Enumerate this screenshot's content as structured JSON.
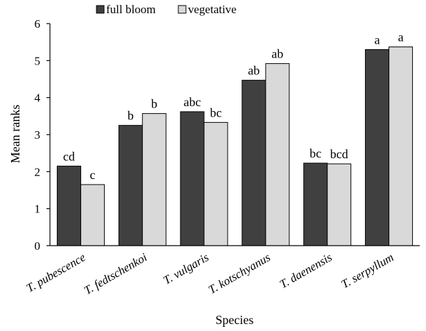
{
  "chart_data": {
    "type": "bar",
    "categories": [
      "T. pubescence",
      "T. fedtschenkoi",
      "T. vulgaris",
      "T. kotschyanus",
      "T. daenensis",
      "T. serpyllum"
    ],
    "series": [
      {
        "name": "full bloom",
        "color": "#404040",
        "values": [
          2.15,
          3.25,
          3.62,
          4.47,
          2.23,
          5.3
        ],
        "labels": [
          "cd",
          "b",
          "abc",
          "ab",
          "bc",
          "a"
        ]
      },
      {
        "name": "vegetative",
        "color": "#d9d9d9",
        "values": [
          1.65,
          3.57,
          3.33,
          4.92,
          2.21,
          5.37
        ],
        "labels": [
          "c",
          "b",
          "bc",
          "ab",
          "bcd",
          "a"
        ]
      }
    ],
    "title": "",
    "xlabel": "Species",
    "ylabel": "Mean ranks",
    "ylim": [
      0,
      6
    ],
    "yticks": [
      "0",
      "1",
      "2",
      "3",
      "4",
      "5",
      "6"
    ],
    "grid": false,
    "legend_position": "top-left"
  }
}
